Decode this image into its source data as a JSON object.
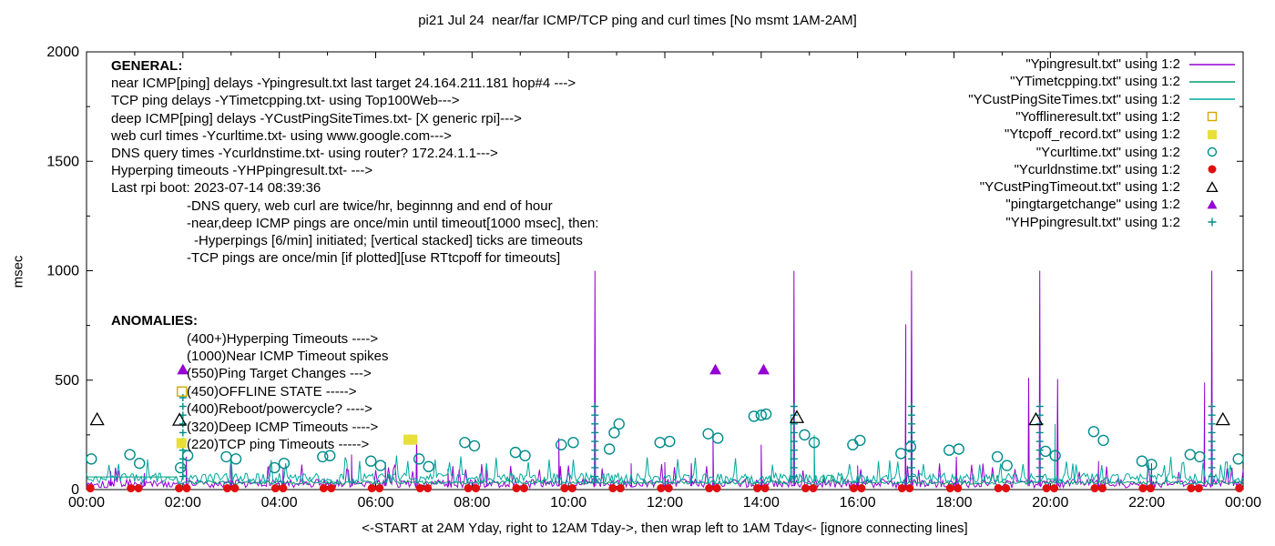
{
  "chart_data": {
    "type": "line",
    "title": "pi21 Jul 24  near/far ICMP/TCP ping and curl times [No msmt 1AM-2AM]",
    "xlabel": "<-START at 2AM Yday, right to 12AM Tday->, then wrap left to 1AM Tday<- [ignore connecting lines]",
    "ylabel": "msec",
    "ylim": [
      0,
      2000
    ],
    "yticks": [
      0,
      500,
      1000,
      1500,
      2000
    ],
    "xlim_hours": [
      0,
      24
    ],
    "xticks": [
      "00:00",
      "02:00",
      "04:00",
      "06:00",
      "08:00",
      "10:00",
      "12:00",
      "14:00",
      "16:00",
      "18:00",
      "20:00",
      "22:00",
      "00:00"
    ],
    "grid": false,
    "legend_position": "top-right",
    "legend": [
      {
        "label": "\"Ypingresult.txt\" using 1:2",
        "marker": "line",
        "color": "#9400D3"
      },
      {
        "label": "\"YTimetcpping.txt\" using 1:2",
        "marker": "line",
        "color": "#009E73"
      },
      {
        "label": "\"YCustPingSiteTimes.txt\" using 1:2",
        "marker": "line",
        "color": "#00A99D"
      },
      {
        "label": "\"Yofflineresult.txt\" using 1:2",
        "marker": "open-square",
        "color": "#D4A800"
      },
      {
        "label": "\"Ytcpoff_record.txt\" using 1:2",
        "marker": "filled-square",
        "color": "#E8DF3A"
      },
      {
        "label": "\"Ycurltime.txt\" using 1:2",
        "marker": "open-circle",
        "color": "#008B8B"
      },
      {
        "label": "\"Ycurldnstime.txt\" using 1:2",
        "marker": "filled-circle",
        "color": "#E01010"
      },
      {
        "label": "\"YCustPingTimeout.txt\" using 1:2",
        "marker": "open-triangle",
        "color": "#000000"
      },
      {
        "label": "\"pingtargetchange\" using 1:2",
        "marker": "filled-triangle",
        "color": "#9400D3"
      },
      {
        "label": "\"YHPpingresult.txt\" using 1:2",
        "marker": "plus",
        "color": "#008B8B"
      }
    ],
    "annotations": {
      "general": {
        "heading": "GENERAL:",
        "lines": [
          {
            "text": "near ICMP[ping] delays -Ypingresult.txt last target 24.164.211.181 hop#4 --->",
            "indent": 0
          },
          {
            "text": "TCP ping delays -YTimetcpping.txt- using Top100Web--->",
            "indent": 0
          },
          {
            "text": "deep ICMP[ping] delays -YCustPingSiteTimes.txt- [X generic rpi]--->",
            "indent": 0
          },
          {
            "text": "web curl times -Ycurltime.txt- using www.google.com--->",
            "indent": 0
          },
          {
            "text": "DNS query times -Ycurldnstime.txt- using router? 172.24.1.1--->",
            "indent": 0
          },
          {
            "text": "Hyperping timeouts -YHPpingresult.txt- --->",
            "indent": 0
          },
          {
            "text": "Last rpi boot: 2023-07-14 08:39:36",
            "indent": 0
          },
          {
            "text": "-DNS query, web curl are twice/hr, beginnng and end of hour",
            "indent": 1
          },
          {
            "text": "-near,deep ICMP pings are once/min until timeout[1000 msec], then:",
            "indent": 1
          },
          {
            "text": "-Hyperpings [6/min] initiated; [vertical stacked] ticks are timeouts",
            "indent": 2
          },
          {
            "text": "-TCP pings are once/min [if plotted][use RTtcpoff for timeouts]",
            "indent": 1
          }
        ]
      },
      "anomalies": {
        "heading": "ANOMALIES:",
        "lines": [
          {
            "text": "(400+)Hyperping Timeouts ---->",
            "indent": 1
          },
          {
            "text": "(1000)Near ICMP Timeout spikes",
            "indent": 1
          },
          {
            "text": "(550)Ping Target Changes --->",
            "indent": 1
          },
          {
            "text": "(450)OFFLINE STATE ----->",
            "indent": 1
          },
          {
            "text": "(400)Reboot/powercycle? ---->",
            "indent": 1
          },
          {
            "text": "(320)Deep ICMP Timeouts ---->",
            "indent": 1
          },
          {
            "text": "(220)TCP ping Timeouts ----->",
            "indent": 1
          }
        ]
      }
    },
    "series": {
      "lines": [
        {
          "name": "Ypingresult.txt",
          "color": "#9400D3",
          "width": 1,
          "base": 8,
          "jitter": 40,
          "spike_prob": 0.05,
          "seed": 101,
          "step_min": 2,
          "spikes": [
            [
              0.5,
              85
            ],
            [
              1.2,
              75
            ],
            [
              2.07,
              150
            ],
            [
              3.0,
              120
            ],
            [
              4.08,
              95
            ],
            [
              5.5,
              160
            ],
            [
              6.2,
              125
            ],
            [
              6.85,
              250
            ],
            [
              7.5,
              95
            ],
            [
              8.3,
              90
            ],
            [
              9.8,
              235
            ],
            [
              10.55,
              1000
            ],
            [
              11.3,
              120
            ],
            [
              12.0,
              125
            ],
            [
              12.55,
              120
            ],
            [
              13.0,
              245
            ],
            [
              14.0,
              205
            ],
            [
              14.68,
              1000
            ],
            [
              16.0,
              110
            ],
            [
              17.0,
              755
            ],
            [
              17.12,
              1000
            ],
            [
              18.05,
              150
            ],
            [
              19.55,
              510
            ],
            [
              19.78,
              1000
            ],
            [
              20.15,
              505
            ],
            [
              21.0,
              130
            ],
            [
              22.1,
              120
            ],
            [
              23.2,
              490
            ],
            [
              23.35,
              1000
            ]
          ]
        },
        {
          "name": "YTimetcpping.txt",
          "color": "#009E73",
          "width": 1,
          "base": 24,
          "jitter": 16,
          "spike_prob": 0.02,
          "seed": 202,
          "step_min": 2,
          "flat": [
            {
              "from": 0,
              "to": 1.9,
              "value": 58
            }
          ],
          "spikes": []
        },
        {
          "name": "YCustPingSiteTimes.txt",
          "color": "#00A99D",
          "width": 1,
          "base": 30,
          "jitter": 45,
          "spike_prob": 0.06,
          "seed": 303,
          "step_min": 2,
          "spikes": [
            [
              14.62,
              340
            ],
            [
              15.1,
              250
            ],
            [
              20.1,
              300
            ]
          ]
        }
      ],
      "hyperping": {
        "name": "YHPpingresult.txt",
        "marker": "plus",
        "color": "#008B8B",
        "size": 4,
        "stacks": [
          {
            "t": 2.0,
            "from": 60,
            "to": 420,
            "step": 40
          },
          {
            "t": 10.55,
            "from": 60,
            "to": 400,
            "step": 40
          },
          {
            "t": 14.68,
            "from": 60,
            "to": 380,
            "step": 40
          },
          {
            "t": 17.12,
            "from": 60,
            "to": 400,
            "step": 40
          },
          {
            "t": 19.78,
            "from": 60,
            "to": 380,
            "step": 40
          },
          {
            "t": 23.35,
            "from": 60,
            "to": 400,
            "step": 40
          }
        ]
      },
      "scatter": [
        {
          "name": "Ycurltime.txt",
          "marker": "open-circle",
          "color": "#008B8B",
          "size": 5.5,
          "points": [
            [
              0.1,
              140
            ],
            [
              0.9,
              160
            ],
            [
              1.1,
              120
            ],
            [
              1.95,
              100
            ],
            [
              2.1,
              155
            ],
            [
              2.9,
              150
            ],
            [
              3.1,
              140
            ],
            [
              3.9,
              100
            ],
            [
              4.1,
              120
            ],
            [
              4.9,
              150
            ],
            [
              5.05,
              155
            ],
            [
              5.9,
              130
            ],
            [
              6.1,
              110
            ],
            [
              6.9,
              140
            ],
            [
              7.1,
              105
            ],
            [
              7.85,
              215
            ],
            [
              8.05,
              200
            ],
            [
              8.9,
              170
            ],
            [
              9.1,
              155
            ],
            [
              9.85,
              205
            ],
            [
              10.1,
              215
            ],
            [
              10.85,
              185
            ],
            [
              10.95,
              260
            ],
            [
              11.05,
              300
            ],
            [
              11.9,
              215
            ],
            [
              12.1,
              220
            ],
            [
              12.9,
              255
            ],
            [
              13.1,
              235
            ],
            [
              13.85,
              335
            ],
            [
              14.0,
              340
            ],
            [
              14.1,
              345
            ],
            [
              14.9,
              250
            ],
            [
              15.1,
              215
            ],
            [
              15.9,
              205
            ],
            [
              16.05,
              225
            ],
            [
              16.9,
              165
            ],
            [
              17.1,
              195
            ],
            [
              17.9,
              180
            ],
            [
              18.1,
              185
            ],
            [
              18.9,
              150
            ],
            [
              19.1,
              110
            ],
            [
              19.9,
              175
            ],
            [
              20.1,
              155
            ],
            [
              20.9,
              265
            ],
            [
              21.1,
              225
            ],
            [
              21.9,
              130
            ],
            [
              22.1,
              115
            ],
            [
              22.9,
              160
            ],
            [
              23.1,
              150
            ],
            [
              23.9,
              140
            ]
          ]
        },
        {
          "name": "Ycurldnstime.txt",
          "marker": "filled-circle",
          "color": "#E01010",
          "size": 4.5,
          "value": 6,
          "times": [
            0.08,
            0.92,
            1.08,
            1.92,
            2.08,
            2.92,
            3.08,
            3.92,
            4.08,
            4.92,
            5.08,
            5.92,
            6.08,
            6.92,
            7.08,
            7.92,
            8.08,
            8.92,
            9.08,
            9.92,
            10.08,
            10.92,
            11.08,
            11.92,
            12.08,
            12.92,
            13.08,
            13.92,
            14.08,
            14.92,
            15.08,
            15.92,
            16.08,
            16.92,
            17.08,
            17.92,
            18.08,
            18.92,
            19.08,
            19.92,
            20.08,
            20.92,
            21.08,
            21.92,
            22.08,
            22.92,
            23.08,
            23.92
          ]
        },
        {
          "name": "Yofflineresult.txt",
          "marker": "open-square",
          "color": "#D4A800",
          "size": 5,
          "points": [
            [
              1.98,
              448
            ]
          ]
        },
        {
          "name": "Ytcpoff_record.txt",
          "marker": "filled-square",
          "color": "#E8DF3A",
          "size": 5.5,
          "points": [
            [
              1.97,
              212
            ],
            [
              6.68,
              228
            ],
            [
              6.76,
              228
            ]
          ]
        },
        {
          "name": "YCustPingTimeout.txt",
          "marker": "open-triangle",
          "color": "#000000",
          "size": 7,
          "points": [
            [
              0.22,
              320
            ],
            [
              1.93,
              318
            ],
            [
              14.74,
              330
            ],
            [
              19.7,
              320
            ],
            [
              23.58,
              320
            ]
          ]
        },
        {
          "name": "pingtargetchange",
          "marker": "filled-triangle",
          "color": "#9400D3",
          "size": 6.5,
          "points": [
            [
              2.0,
              548
            ],
            [
              13.05,
              548
            ],
            [
              14.05,
              548
            ]
          ]
        }
      ]
    }
  }
}
